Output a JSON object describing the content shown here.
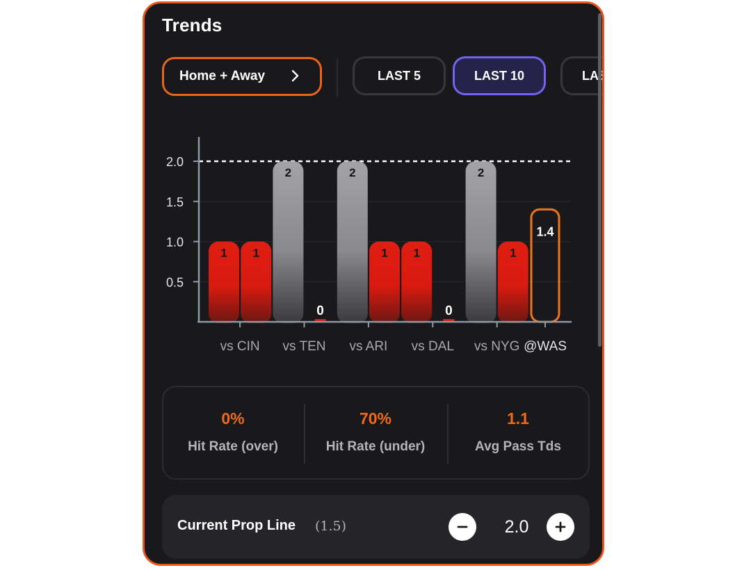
{
  "header": {
    "title": "Trends"
  },
  "filters": {
    "location_label": "Home + Away",
    "tabs": [
      {
        "label": "LAST 5",
        "active": false
      },
      {
        "label": "LAST 10",
        "active": true
      },
      {
        "label": "LAS",
        "active": false
      }
    ]
  },
  "icons": {
    "location_chevron": "chevron-right-icon",
    "minus": "minus-icon",
    "plus": "plus-icon"
  },
  "colors": {
    "accent_orange": "#e8651a",
    "active_tab": "#7263f0",
    "bar_under": "#e01e12",
    "bar_over": "#9a9a9e",
    "projection_outline": "#f0741c"
  },
  "chart_data": {
    "type": "bar",
    "bars": [
      {
        "value": 1,
        "label": "1",
        "status": "under"
      },
      {
        "value": 1,
        "label": "1",
        "status": "under"
      },
      {
        "value": 2,
        "label": "2",
        "status": "push"
      },
      {
        "value": 0,
        "label": "0",
        "status": "under"
      },
      {
        "value": 2,
        "label": "2",
        "status": "push"
      },
      {
        "value": 1,
        "label": "1",
        "status": "under"
      },
      {
        "value": 1,
        "label": "1",
        "status": "under"
      },
      {
        "value": 0,
        "label": "0",
        "status": "under"
      },
      {
        "value": 2,
        "label": "2",
        "status": "push"
      },
      {
        "value": 1,
        "label": "1",
        "status": "under"
      },
      {
        "value": 1.4,
        "label": "1.4",
        "status": "projection"
      }
    ],
    "xtick_labels": [
      "vs CIN",
      "vs TEN",
      "vs ARI",
      "vs DAL",
      "vs NYG",
      "@WAS"
    ],
    "ytick_labels": [
      "0.5",
      "1.0",
      "1.5",
      "2.0"
    ],
    "yticks": [
      0.5,
      1.0,
      1.5,
      2.0
    ],
    "ylim": [
      0,
      2.3
    ],
    "reference_line": 2.0,
    "grid": true
  },
  "stats": [
    {
      "value": "0%",
      "label": "Hit Rate (over)"
    },
    {
      "value": "70%",
      "label": "Hit Rate (under)"
    },
    {
      "value": "1.1",
      "label": "Avg Pass Tds"
    }
  ],
  "prop_line": {
    "label": "Current Prop Line",
    "current": "(1.5)",
    "value": "2.0"
  }
}
